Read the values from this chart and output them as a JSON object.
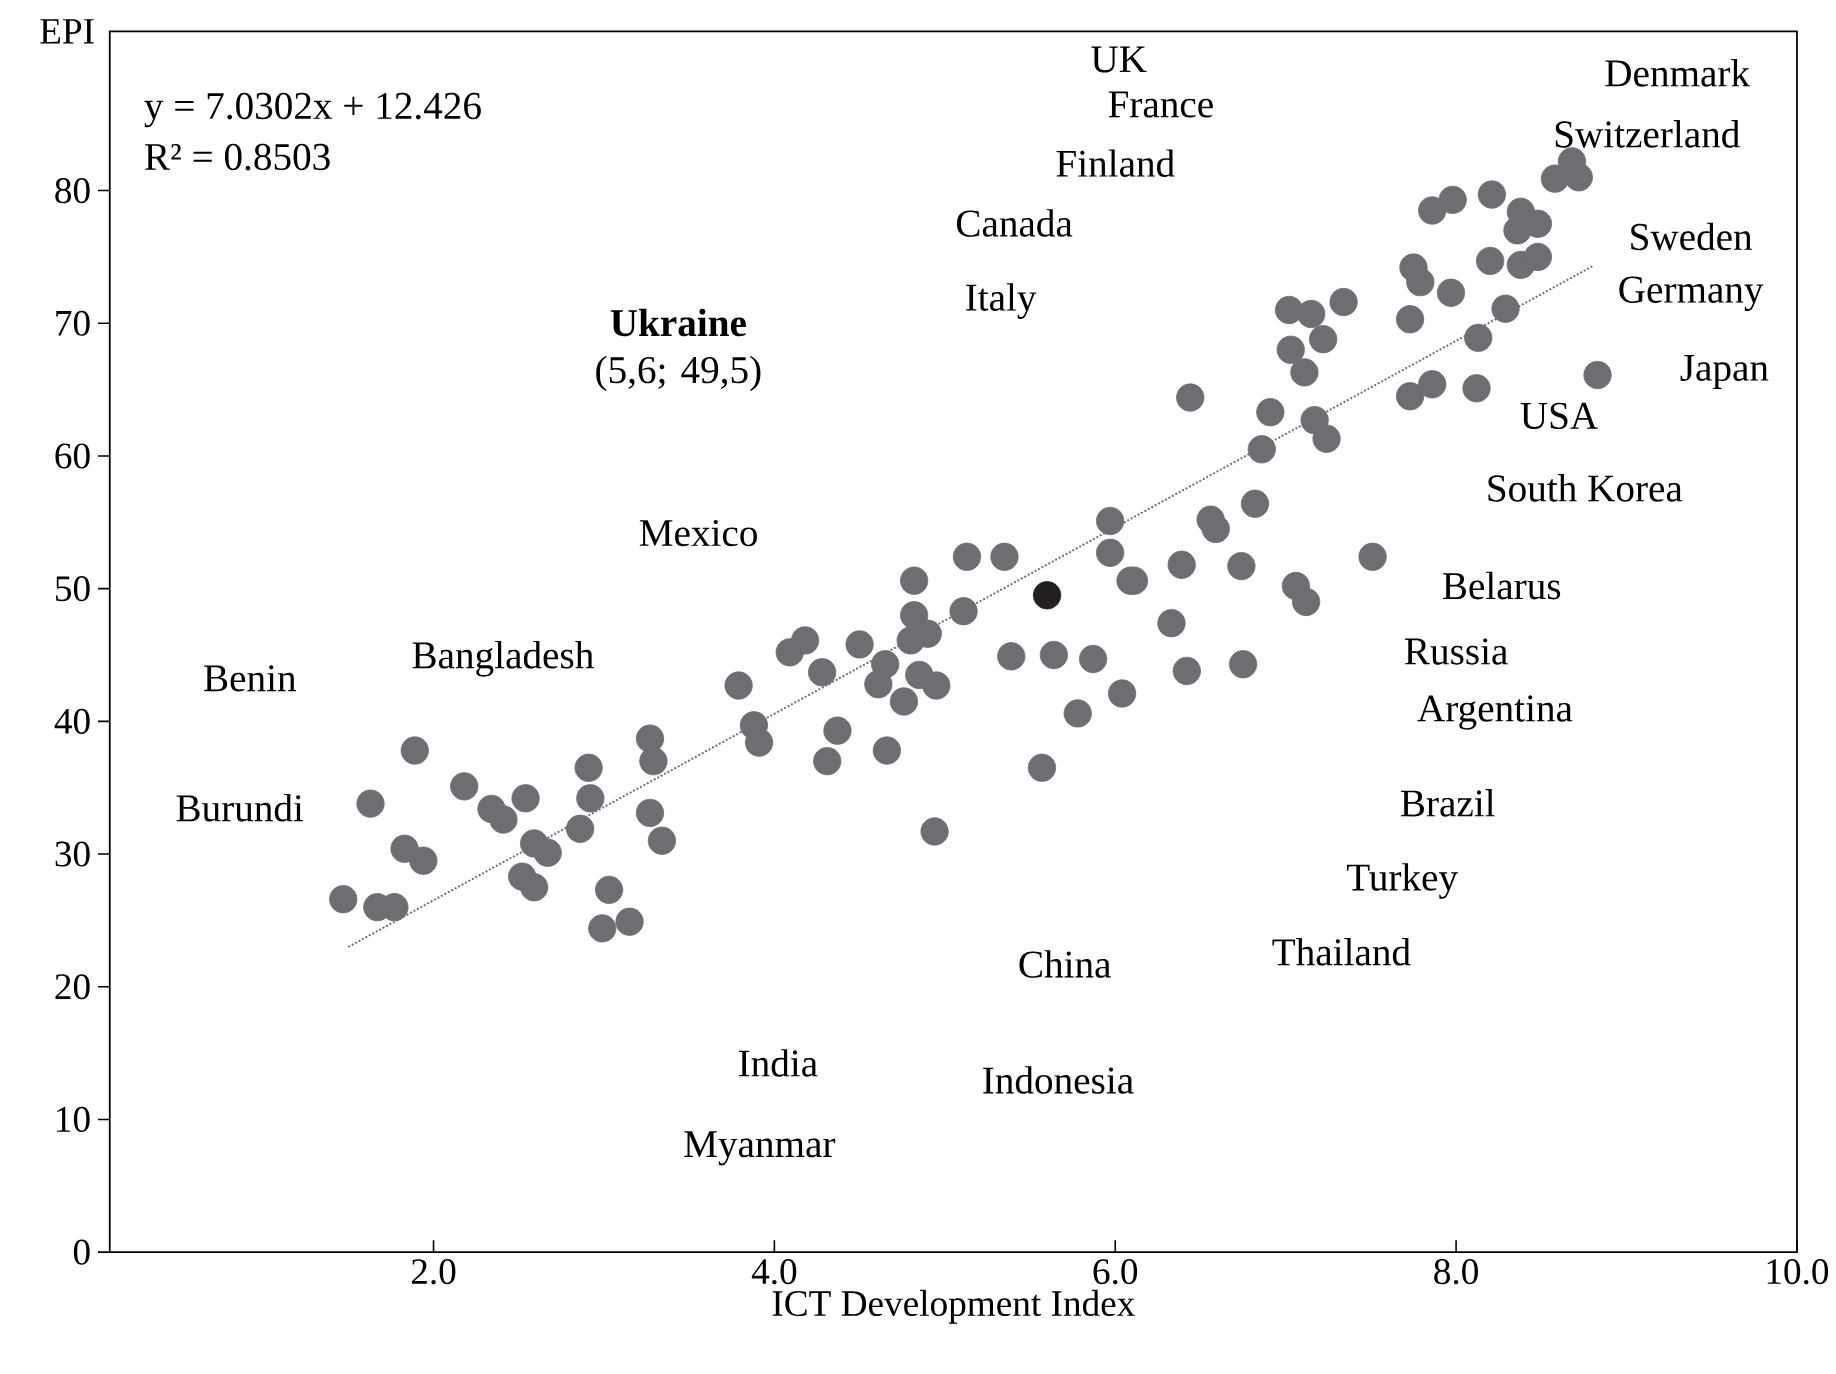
{
  "chart_data": {
    "type": "scatter",
    "xlabel": "ICT Development Index",
    "ylabel": "EPI",
    "xlim": [
      0.1,
      10
    ],
    "ylim": [
      0,
      92
    ],
    "xticks": [
      {
        "value": 2,
        "label": "2.0"
      },
      {
        "value": 4,
        "label": "4.0"
      },
      {
        "value": 6,
        "label": "6.0"
      },
      {
        "value": 8,
        "label": "8.0"
      },
      {
        "value": 10,
        "label": "10.0"
      }
    ],
    "yticks": [
      0,
      10,
      20,
      30,
      40,
      50,
      60,
      70,
      80
    ],
    "grid": false,
    "marker": "circle",
    "series": [
      {
        "color": "#6d6e71",
        "x": [
          1.47,
          1.63,
          1.67,
          1.77,
          1.83,
          1.94,
          1.89,
          2.18,
          2.34,
          2.41,
          2.54,
          2.59,
          2.67,
          2.52,
          2.59,
          2.86,
          2.91,
          2.92,
          3.03,
          3.15,
          2.99,
          3.27,
          3.29,
          3.27,
          3.34,
          3.79,
          3.88,
          3.91,
          4.09,
          4.18,
          4.28,
          4.31,
          4.37,
          4.5,
          4.61,
          4.65,
          4.66,
          4.76,
          4.8,
          4.82,
          4.82,
          4.85,
          4.9,
          4.95,
          4.94,
          5.11,
          5.13,
          5.35,
          5.39,
          5.57,
          5.64,
          5.78,
          5.87,
          5.97,
          5.97,
          6.04,
          6.09,
          6.11,
          6.33,
          6.39,
          6.42,
          6.44,
          6.56,
          6.59,
          6.74,
          6.75,
          6.82,
          6.86,
          6.91,
          7.02,
          7.03,
          7.06,
          7.11,
          7.12,
          7.15,
          7.17,
          7.22,
          7.24,
          7.34,
          7.51,
          7.73,
          7.73,
          7.75,
          7.79,
          7.86,
          7.86,
          7.97,
          7.98,
          8.12,
          8.13,
          8.2,
          8.21,
          8.29,
          8.36,
          8.38,
          8.38,
          8.48,
          8.48,
          8.58,
          8.68,
          8.72,
          8.83
        ],
        "values": [
          26.6,
          33.8,
          26.0,
          26.0,
          30.4,
          29.5,
          37.8,
          35.1,
          33.4,
          32.6,
          34.2,
          30.8,
          30.1,
          28.3,
          27.5,
          31.9,
          36.5,
          34.2,
          27.3,
          24.9,
          24.4,
          38.7,
          37.0,
          33.1,
          31.0,
          42.7,
          39.7,
          38.4,
          45.2,
          46.1,
          43.7,
          37.0,
          39.3,
          45.8,
          42.8,
          44.3,
          37.8,
          41.5,
          46.1,
          50.6,
          48.0,
          43.5,
          46.6,
          42.7,
          31.7,
          48.3,
          52.4,
          52.4,
          44.9,
          36.5,
          45.0,
          40.6,
          44.7,
          55.1,
          52.7,
          42.1,
          50.6,
          50.6,
          47.4,
          51.8,
          43.8,
          64.4,
          55.2,
          54.5,
          51.7,
          44.3,
          56.4,
          60.5,
          63.3,
          71.0,
          68.0,
          50.2,
          66.3,
          49.0,
          70.7,
          62.7,
          68.8,
          61.3,
          71.6,
          52.4,
          70.3,
          64.5,
          74.2,
          73.1,
          78.5,
          65.4,
          72.3,
          79.3,
          65.1,
          68.9,
          74.7,
          79.7,
          71.1,
          77.0,
          78.4,
          74.4,
          77.5,
          75.0,
          80.9,
          82.2,
          81.0,
          66.1
        ]
      },
      {
        "color": "#231f20",
        "x": [
          5.6
        ],
        "values": [
          49.5
        ]
      },
      {
        "type": "line",
        "color": "#6d6e71",
        "line_style": "dotted",
        "marker": "none",
        "x": [
          1.5,
          8.8
        ],
        "values": [
          23.0,
          74.3
        ]
      }
    ],
    "annotations": [
      "y = 7.0302x + 12.426",
      "R² = 0.8503",
      "**Ukraine** (5,6; 49,5)",
      "UK",
      "France",
      "Finland",
      "Canada",
      "Italy",
      "Mexico",
      "Benin",
      "Bangladesh",
      "Burundi",
      "China",
      "India",
      "Indonesia",
      "Myanmar",
      "Thailand",
      "Turkey",
      "Brazil",
      "Argentina",
      "Russia",
      "Belarus",
      "South Korea",
      "USA",
      "Japan",
      "Germany",
      "Sweden",
      "Switzerland",
      "Denmark"
    ]
  }
}
